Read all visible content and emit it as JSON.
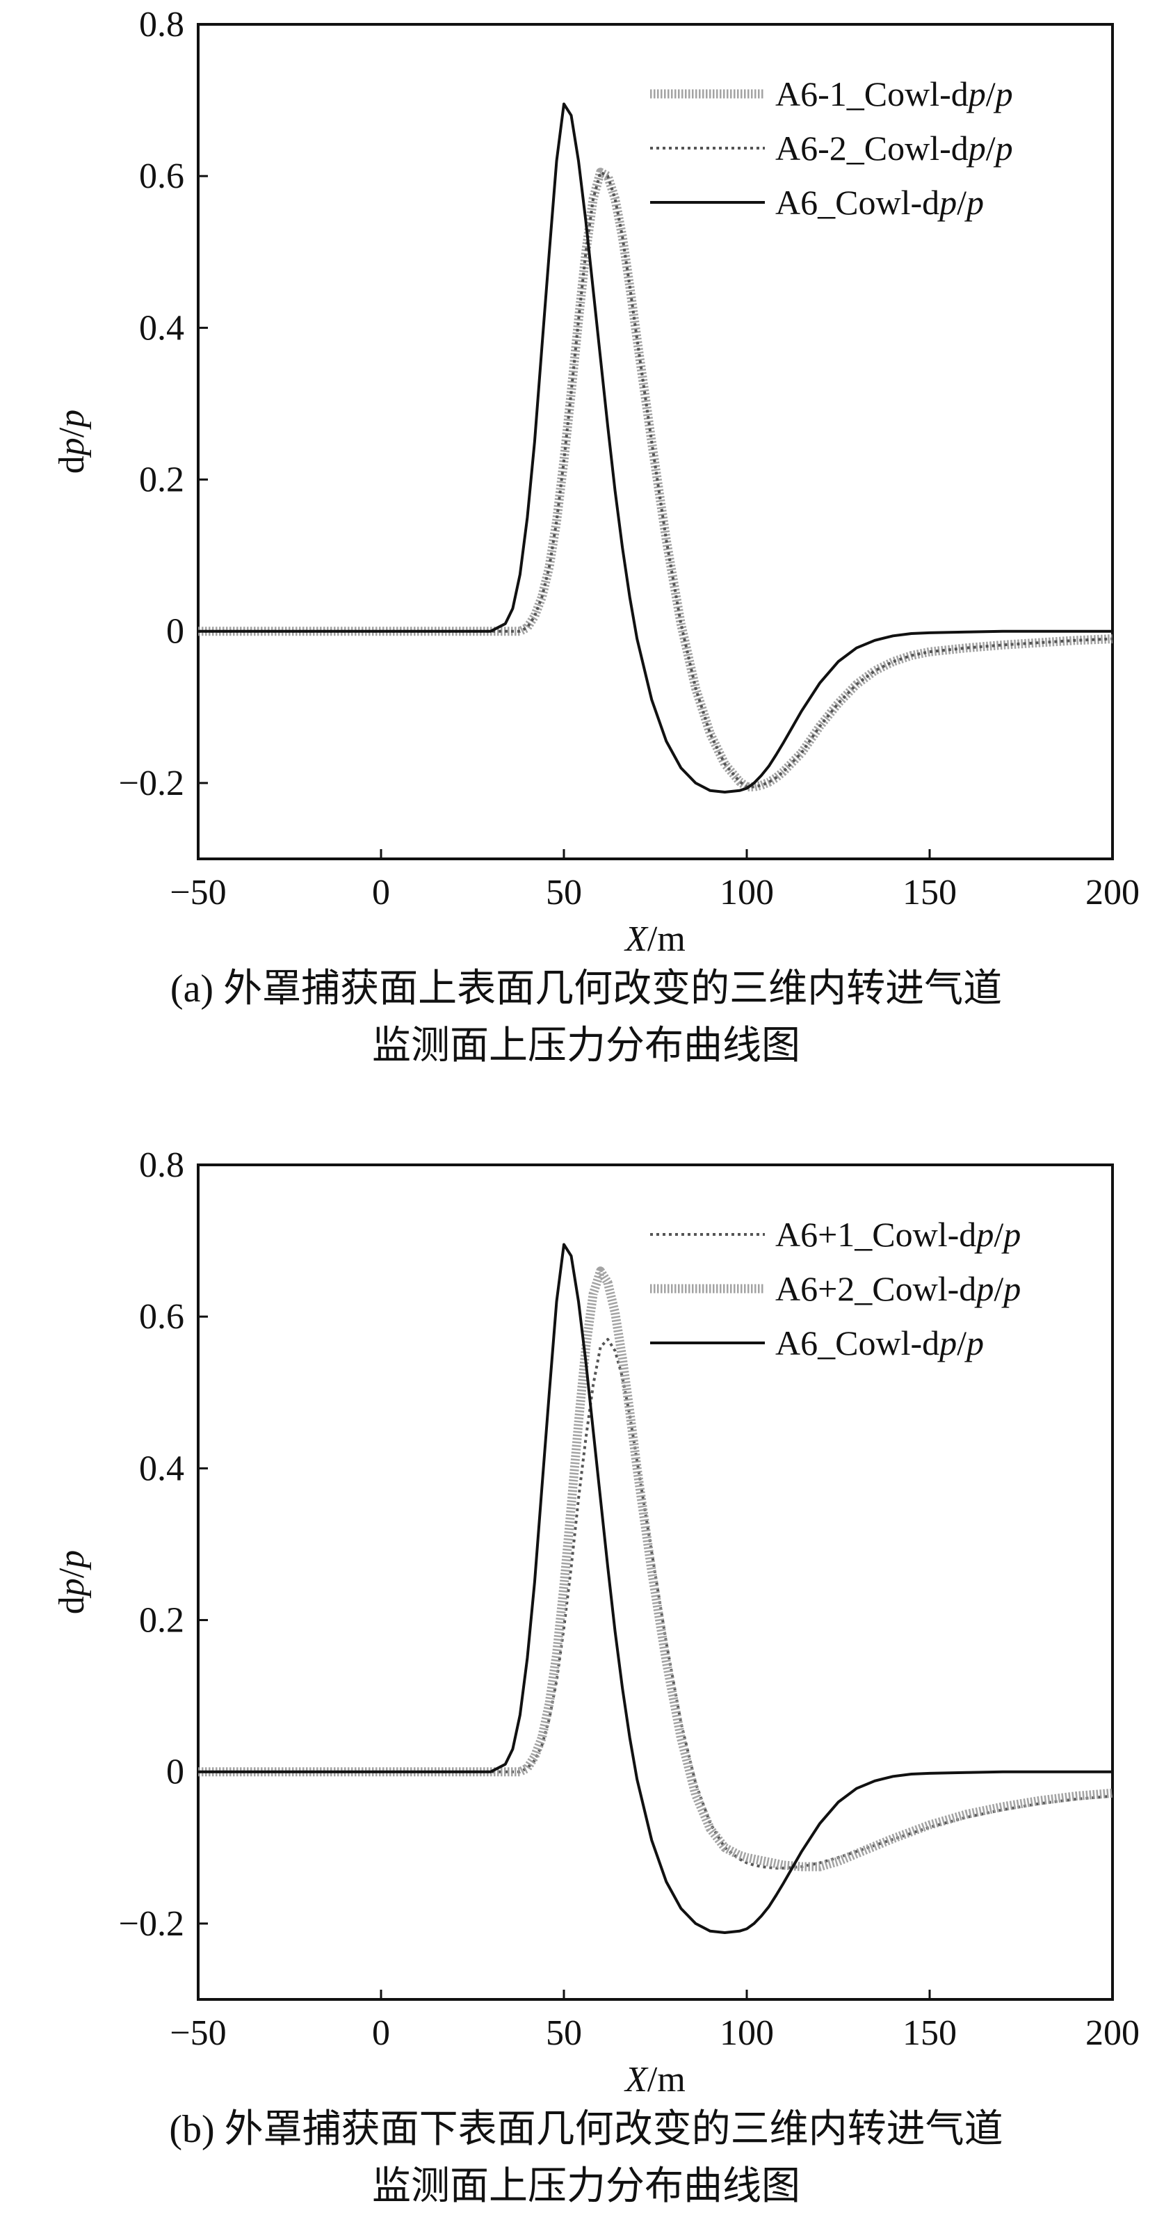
{
  "chart_data": [
    {
      "type": "line",
      "panel": "a",
      "xlabel": "X/m",
      "ylabel": "dp/p",
      "xlim": [
        -50,
        200
      ],
      "ylim": [
        -0.3,
        0.8
      ],
      "xticks": [
        -50,
        0,
        50,
        100,
        150,
        200
      ],
      "yticks": [
        -0.2,
        0,
        0.2,
        0.4,
        0.6,
        0.8
      ],
      "ytick_labels": [
        "−0.2",
        "0",
        "0.2",
        "0.4",
        "0.6",
        "0.8"
      ],
      "grid": false,
      "legend_position": "top-right",
      "caption_lines": [
        "(a) 外罩捕获面上表面几何改变的三维内转进气道",
        "监测面上压力分布曲线图"
      ],
      "x": [
        -50,
        0,
        20,
        30,
        34,
        36,
        38,
        40,
        42,
        44,
        46,
        48,
        50,
        52,
        54,
        56,
        58,
        60,
        62,
        64,
        66,
        68,
        70,
        74,
        78,
        82,
        86,
        90,
        94,
        98,
        100,
        102,
        104,
        106,
        108,
        110,
        115,
        120,
        125,
        130,
        135,
        140,
        145,
        150,
        160,
        170,
        180,
        190,
        200
      ],
      "series": [
        {
          "name": "A6-1_Cowl-dp/p",
          "style": "thick-gray",
          "color": "#999999",
          "values": [
            0,
            0,
            0,
            0,
            0,
            0,
            0,
            0.005,
            0.02,
            0.045,
            0.085,
            0.145,
            0.225,
            0.315,
            0.41,
            0.5,
            0.57,
            0.605,
            0.6,
            0.57,
            0.52,
            0.455,
            0.385,
            0.25,
            0.12,
            0.01,
            -0.075,
            -0.135,
            -0.175,
            -0.198,
            -0.205,
            -0.205,
            -0.203,
            -0.199,
            -0.193,
            -0.185,
            -0.16,
            -0.125,
            -0.095,
            -0.07,
            -0.052,
            -0.04,
            -0.032,
            -0.027,
            -0.022,
            -0.018,
            -0.015,
            -0.012,
            -0.01
          ]
        },
        {
          "name": "A6-2_Cowl-dp/p",
          "style": "dotted",
          "color": "#555555",
          "values": [
            0,
            0,
            0,
            0,
            0,
            0,
            0,
            0.005,
            0.02,
            0.045,
            0.085,
            0.145,
            0.225,
            0.315,
            0.41,
            0.5,
            0.57,
            0.605,
            0.6,
            0.57,
            0.52,
            0.455,
            0.385,
            0.25,
            0.12,
            0.01,
            -0.075,
            -0.135,
            -0.175,
            -0.198,
            -0.205,
            -0.205,
            -0.203,
            -0.199,
            -0.193,
            -0.185,
            -0.16,
            -0.125,
            -0.095,
            -0.07,
            -0.052,
            -0.04,
            -0.032,
            -0.027,
            -0.022,
            -0.018,
            -0.015,
            -0.012,
            -0.01
          ]
        },
        {
          "name": "A6_Cowl-dp/p",
          "style": "solid",
          "color": "#111111",
          "values": [
            0,
            0,
            0,
            0,
            0.01,
            0.03,
            0.075,
            0.15,
            0.25,
            0.375,
            0.5,
            0.62,
            0.695,
            0.68,
            0.62,
            0.54,
            0.45,
            0.36,
            0.27,
            0.185,
            0.11,
            0.045,
            -0.01,
            -0.09,
            -0.145,
            -0.18,
            -0.2,
            -0.21,
            -0.212,
            -0.21,
            -0.207,
            -0.2,
            -0.19,
            -0.178,
            -0.163,
            -0.147,
            -0.105,
            -0.068,
            -0.04,
            -0.022,
            -0.012,
            -0.006,
            -0.003,
            -0.002,
            -0.001,
            0,
            0,
            0,
            0
          ]
        }
      ]
    },
    {
      "type": "line",
      "panel": "b",
      "xlabel": "X/m",
      "ylabel": "dp/p",
      "xlim": [
        -50,
        200
      ],
      "ylim": [
        -0.3,
        0.8
      ],
      "xticks": [
        -50,
        0,
        50,
        100,
        150,
        200
      ],
      "yticks": [
        -0.2,
        0,
        0.2,
        0.4,
        0.6,
        0.8
      ],
      "ytick_labels": [
        "−0.2",
        "0",
        "0.2",
        "0.4",
        "0.6",
        "0.8"
      ],
      "grid": false,
      "legend_position": "top-right",
      "caption_lines": [
        "(b) 外罩捕获面下表面几何改变的三维内转进气道",
        "监测面上压力分布曲线图"
      ],
      "x": [
        -50,
        0,
        20,
        30,
        34,
        36,
        38,
        40,
        42,
        44,
        46,
        48,
        50,
        52,
        54,
        56,
        58,
        60,
        62,
        64,
        66,
        68,
        70,
        74,
        78,
        82,
        86,
        90,
        94,
        98,
        100,
        102,
        104,
        106,
        108,
        110,
        115,
        120,
        125,
        130,
        135,
        140,
        145,
        150,
        160,
        170,
        180,
        190,
        200
      ],
      "series": [
        {
          "name": "A6+1_Cowl-dp/p",
          "style": "dotted",
          "color": "#555555",
          "values": [
            0,
            0,
            0,
            0,
            0,
            0,
            0,
            0.005,
            0.015,
            0.035,
            0.07,
            0.12,
            0.19,
            0.27,
            0.36,
            0.44,
            0.51,
            0.56,
            0.57,
            0.555,
            0.52,
            0.47,
            0.41,
            0.29,
            0.17,
            0.065,
            -0.015,
            -0.068,
            -0.1,
            -0.115,
            -0.12,
            -0.123,
            -0.125,
            -0.126,
            -0.127,
            -0.127,
            -0.125,
            -0.12,
            -0.113,
            -0.105,
            -0.097,
            -0.089,
            -0.081,
            -0.073,
            -0.06,
            -0.05,
            -0.042,
            -0.036,
            -0.032
          ]
        },
        {
          "name": "A6+2_Cowl-dp/p",
          "style": "thick-gray",
          "color": "#999999",
          "values": [
            0,
            0,
            0,
            0,
            0,
            0,
            0,
            0.005,
            0.02,
            0.045,
            0.09,
            0.155,
            0.245,
            0.35,
            0.46,
            0.56,
            0.63,
            0.66,
            0.645,
            0.605,
            0.545,
            0.475,
            0.4,
            0.265,
            0.145,
            0.045,
            -0.03,
            -0.075,
            -0.1,
            -0.11,
            -0.113,
            -0.115,
            -0.117,
            -0.119,
            -0.121,
            -0.123,
            -0.125,
            -0.125,
            -0.118,
            -0.108,
            -0.098,
            -0.088,
            -0.079,
            -0.07,
            -0.056,
            -0.046,
            -0.038,
            -0.032,
            -0.028
          ]
        },
        {
          "name": "A6_Cowl-dp/p",
          "style": "solid",
          "color": "#111111",
          "values": [
            0,
            0,
            0,
            0,
            0.01,
            0.03,
            0.075,
            0.15,
            0.25,
            0.375,
            0.5,
            0.62,
            0.695,
            0.68,
            0.62,
            0.54,
            0.45,
            0.36,
            0.27,
            0.185,
            0.11,
            0.045,
            -0.01,
            -0.09,
            -0.145,
            -0.18,
            -0.2,
            -0.21,
            -0.212,
            -0.21,
            -0.207,
            -0.2,
            -0.19,
            -0.178,
            -0.163,
            -0.147,
            -0.105,
            -0.068,
            -0.04,
            -0.022,
            -0.012,
            -0.006,
            -0.003,
            -0.002,
            -0.001,
            0,
            0,
            0,
            0
          ]
        }
      ]
    }
  ]
}
